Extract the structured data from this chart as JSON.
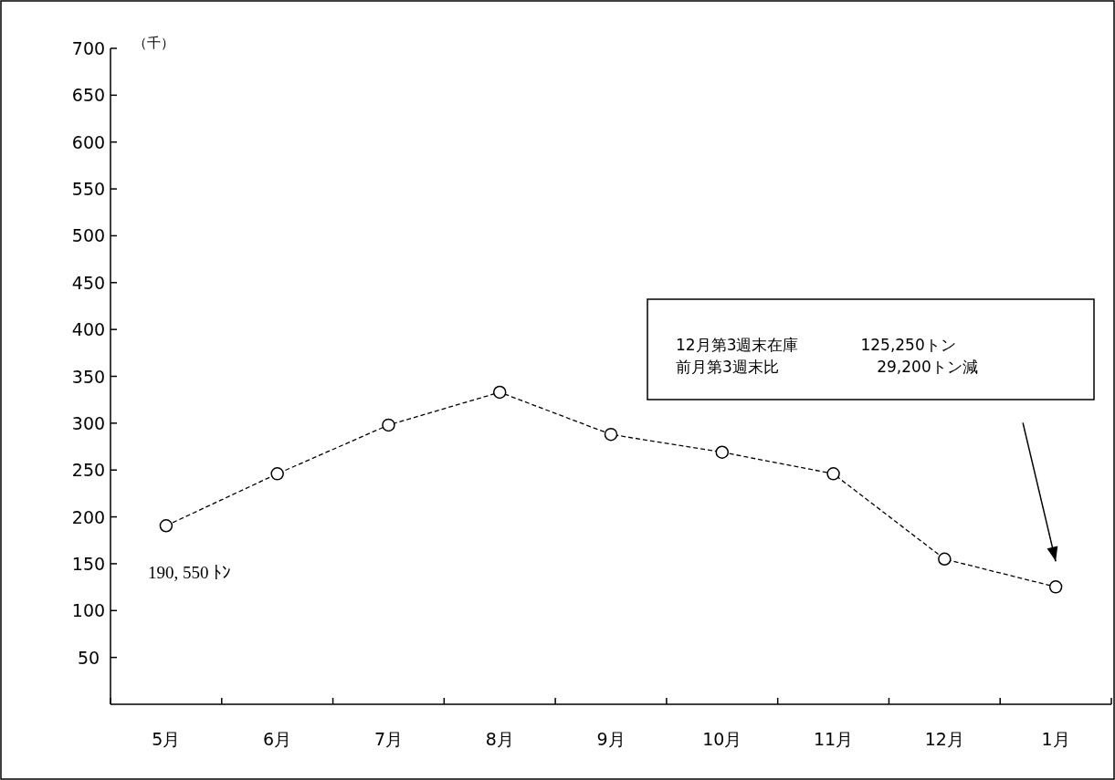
{
  "chart_data": {
    "type": "line",
    "categories": [
      "5月",
      "6月",
      "7月",
      "8月",
      "9月",
      "10月",
      "11月",
      "12月",
      "1月"
    ],
    "series": [
      {
        "color": "#000000",
        "values": [
          190.55,
          246,
          298,
          333,
          288,
          269,
          246,
          155,
          125.25
        ]
      }
    ],
    "ylabel": "（千）",
    "ylim": [
      0,
      700
    ],
    "yticks": [
      50,
      100,
      150,
      200,
      250,
      300,
      350,
      400,
      450,
      500,
      550,
      600,
      650,
      700
    ],
    "marker": "circle",
    "line_style": "dashed",
    "grid": false,
    "annotations": [
      {
        "text": "190, 550 ﾄﾝ",
        "x": "5月",
        "y": 190.55
      },
      "12月第3週末在庫　　　　125,250トン",
      "前月第3週末比　　　　　　 29,200トン減"
    ]
  }
}
